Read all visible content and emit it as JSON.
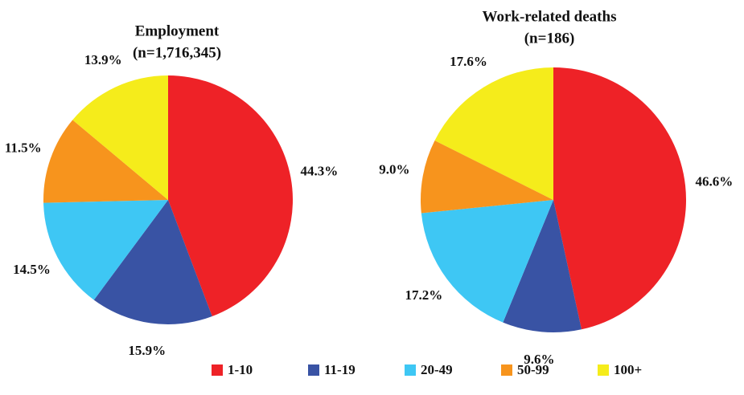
{
  "chart_data": [
    {
      "type": "pie",
      "title": "Employment",
      "subtitle": "(n=1,716,345)",
      "categories": [
        "1-10",
        "11-19",
        "20-49",
        "50-99",
        "100+"
      ],
      "values": [
        44.3,
        15.9,
        14.5,
        11.5,
        13.9
      ],
      "value_labels": [
        "44.3%",
        "15.9%",
        "14.5%",
        "11.5%",
        "13.9%"
      ],
      "colors": [
        "#ee2227",
        "#3953a4",
        "#3ec7f4",
        "#f7941d",
        "#f5ec1b"
      ]
    },
    {
      "type": "pie",
      "title": "Work-related deaths",
      "subtitle": "(n=186)",
      "categories": [
        "1-10",
        "11-19",
        "20-49",
        "50-99",
        "100+"
      ],
      "values": [
        46.6,
        9.6,
        17.2,
        9.0,
        17.6
      ],
      "value_labels": [
        "46.6%",
        "9.6%",
        "17.2%",
        "9.0%",
        "17.6%"
      ],
      "colors": [
        "#ee2227",
        "#3953a4",
        "#3ec7f4",
        "#f7941d",
        "#f5ec1b"
      ]
    }
  ]
}
